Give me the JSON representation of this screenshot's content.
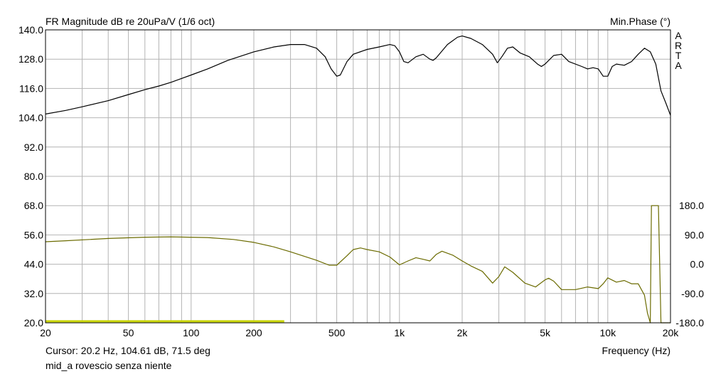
{
  "chart_data": {
    "type": "line",
    "title": "FR Magnitude dB re 20uPa/V (1/6 oct)",
    "right_axis_title": "Min.Phase (°)",
    "watermark": [
      "A",
      "R",
      "T",
      "A"
    ],
    "xlabel": "Frequency (Hz)",
    "xscale": "log",
    "xlim": [
      20,
      20000
    ],
    "x_tick_labels": [
      {
        "value": 20,
        "label": "20"
      },
      {
        "value": 50,
        "label": "50"
      },
      {
        "value": 100,
        "label": "100"
      },
      {
        "value": 200,
        "label": "200"
      },
      {
        "value": 500,
        "label": "500"
      },
      {
        "value": 1000,
        "label": "1k"
      },
      {
        "value": 2000,
        "label": "2k"
      },
      {
        "value": 5000,
        "label": "5k"
      },
      {
        "value": 10000,
        "label": "10k"
      },
      {
        "value": 20000,
        "label": "20k"
      }
    ],
    "ylim": [
      20,
      140
    ],
    "y_ticks": [
      "140.0",
      "128.0",
      "116.0",
      "104.0",
      "92.0",
      "80.0",
      "68.0",
      "56.0",
      "44.0",
      "32.0",
      "20.0"
    ],
    "y2lim": [
      -180,
      180
    ],
    "y2_range_top_db": 68,
    "y2_ticks": [
      "180.0",
      "90.0",
      "0.0",
      "-90.0",
      "-180.0"
    ],
    "grid": true,
    "cursor_text": "Cursor: 20.2 Hz, 104.61 dB, 71.5 deg",
    "footer_label": "mid_a rovescio senza niente",
    "colors": {
      "magnitude": "#000000",
      "phase": "#6b6b00",
      "reference": "#c8d400",
      "grid": "#b4b4b4"
    },
    "series": [
      {
        "id": "magnitude",
        "axis": "left",
        "points": [
          [
            20,
            105.5
          ],
          [
            25,
            107
          ],
          [
            30,
            108.5
          ],
          [
            40,
            111
          ],
          [
            50,
            113.5
          ],
          [
            60,
            115.5
          ],
          [
            70,
            117
          ],
          [
            80,
            118.5
          ],
          [
            100,
            121.5
          ],
          [
            120,
            124
          ],
          [
            150,
            127.5
          ],
          [
            200,
            131
          ],
          [
            250,
            133
          ],
          [
            300,
            134
          ],
          [
            350,
            134
          ],
          [
            400,
            132.5
          ],
          [
            440,
            129
          ],
          [
            470,
            124
          ],
          [
            500,
            121
          ],
          [
            520,
            121.5
          ],
          [
            560,
            127
          ],
          [
            600,
            130
          ],
          [
            700,
            132
          ],
          [
            800,
            133
          ],
          [
            900,
            134
          ],
          [
            950,
            133.5
          ],
          [
            1000,
            131
          ],
          [
            1050,
            127
          ],
          [
            1100,
            126.5
          ],
          [
            1200,
            129
          ],
          [
            1300,
            130
          ],
          [
            1400,
            128
          ],
          [
            1450,
            127.5
          ],
          [
            1500,
            128.5
          ],
          [
            1700,
            134
          ],
          [
            1900,
            137
          ],
          [
            2000,
            137.5
          ],
          [
            2200,
            136.5
          ],
          [
            2500,
            134
          ],
          [
            2800,
            130
          ],
          [
            2950,
            126.5
          ],
          [
            3100,
            129
          ],
          [
            3300,
            132.5
          ],
          [
            3500,
            133
          ],
          [
            3800,
            130.5
          ],
          [
            4200,
            129
          ],
          [
            4600,
            126
          ],
          [
            4800,
            125
          ],
          [
            5000,
            126
          ],
          [
            5500,
            129.5
          ],
          [
            6000,
            130
          ],
          [
            6500,
            127
          ],
          [
            7500,
            125
          ],
          [
            8000,
            124
          ],
          [
            8500,
            124.5
          ],
          [
            9000,
            124
          ],
          [
            9500,
            121
          ],
          [
            10000,
            121
          ],
          [
            10500,
            125
          ],
          [
            11000,
            126
          ],
          [
            12000,
            125.5
          ],
          [
            13000,
            127
          ],
          [
            14000,
            130
          ],
          [
            15000,
            132.5
          ],
          [
            16000,
            131
          ],
          [
            17000,
            126
          ],
          [
            18000,
            115
          ],
          [
            19000,
            110
          ],
          [
            20000,
            105
          ]
        ]
      },
      {
        "id": "phase",
        "axis": "right",
        "points": [
          [
            20,
            69
          ],
          [
            25,
            72
          ],
          [
            40,
            79
          ],
          [
            60,
            83
          ],
          [
            80,
            84
          ],
          [
            120,
            82
          ],
          [
            160,
            76
          ],
          [
            200,
            67
          ],
          [
            250,
            53
          ],
          [
            300,
            38
          ],
          [
            400,
            12
          ],
          [
            460,
            -3
          ],
          [
            500,
            -3
          ],
          [
            560,
            26
          ],
          [
            600,
            45
          ],
          [
            650,
            50
          ],
          [
            700,
            45
          ],
          [
            800,
            38
          ],
          [
            900,
            22
          ],
          [
            1000,
            -2
          ],
          [
            1100,
            10
          ],
          [
            1200,
            20
          ],
          [
            1300,
            15
          ],
          [
            1400,
            10
          ],
          [
            1500,
            30
          ],
          [
            1600,
            40
          ],
          [
            1800,
            28
          ],
          [
            2000,
            10
          ],
          [
            2200,
            -5
          ],
          [
            2500,
            -22
          ],
          [
            2800,
            -58
          ],
          [
            3000,
            -38
          ],
          [
            3200,
            -8
          ],
          [
            3500,
            -25
          ],
          [
            4000,
            -58
          ],
          [
            4500,
            -70
          ],
          [
            5000,
            -48
          ],
          [
            5200,
            -43
          ],
          [
            5500,
            -52
          ],
          [
            6000,
            -78
          ],
          [
            7000,
            -78
          ],
          [
            8000,
            -70
          ],
          [
            9000,
            -75
          ],
          [
            9500,
            -60
          ],
          [
            10000,
            -42
          ],
          [
            11000,
            -55
          ],
          [
            12000,
            -50
          ],
          [
            13000,
            -60
          ],
          [
            14000,
            -60
          ],
          [
            15000,
            -95
          ],
          [
            15500,
            -150
          ],
          [
            16000,
            -180
          ],
          [
            16200,
            180
          ],
          [
            17500,
            180
          ],
          [
            18000,
            -180
          ],
          [
            20000,
            -180
          ]
        ]
      },
      {
        "id": "reference",
        "axis": "left",
        "points": [
          [
            20,
            20.6
          ],
          [
            280,
            20.6
          ]
        ]
      }
    ]
  }
}
